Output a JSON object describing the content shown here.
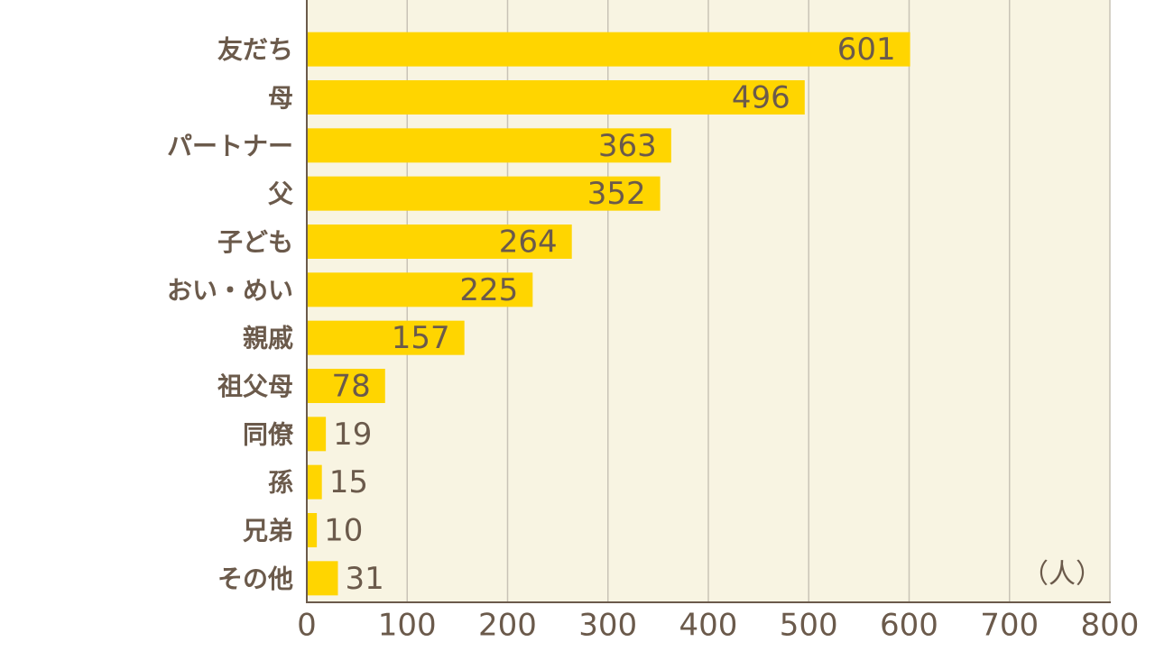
{
  "chart_data": {
    "type": "bar",
    "orientation": "horizontal",
    "categories": [
      "友だち",
      "母",
      "パートナー",
      "父",
      "子ども",
      "おい・めい",
      "親戚",
      "祖父母",
      "同僚",
      "孫",
      "兄弟",
      "その他"
    ],
    "values": [
      601,
      496,
      363,
      352,
      264,
      225,
      157,
      78,
      19,
      15,
      10,
      31
    ],
    "color": "#ffd500",
    "xlim": [
      0,
      800
    ],
    "xticks": [
      0,
      100,
      200,
      300,
      400,
      500,
      600,
      700,
      800
    ],
    "grid": true,
    "unit_label": "（人）"
  }
}
